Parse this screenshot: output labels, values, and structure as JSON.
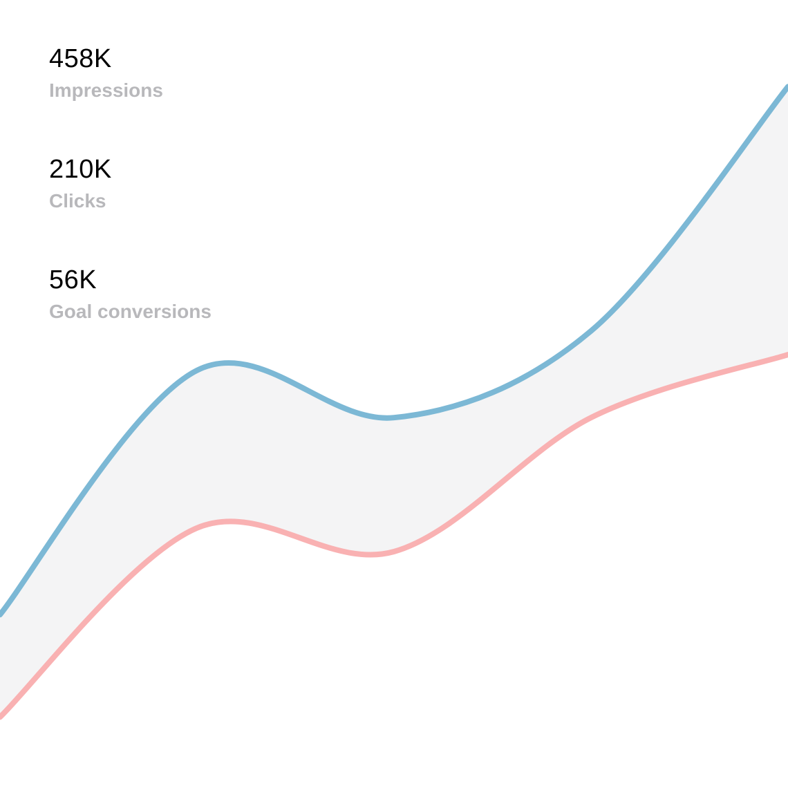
{
  "stats": [
    {
      "value": "458K",
      "label": "Impressions"
    },
    {
      "value": "210K",
      "label": "Clicks"
    },
    {
      "value": "56K",
      "label": "Goal conversions"
    }
  ],
  "colors": {
    "upper_line": "#7cb8d5",
    "lower_line": "#f9b1b2",
    "band_fill": "#f4f4f5",
    "value_text": "#000000",
    "label_text": "#b8b8bb"
  },
  "chart_data": {
    "type": "area",
    "title": "",
    "xlabel": "",
    "ylabel": "",
    "grid": false,
    "x": [
      0,
      1,
      2,
      3,
      4
    ],
    "ylim": [
      0,
      100
    ],
    "series": [
      {
        "values": [
          22,
          53,
          47,
          58,
          89
        ]
      },
      {
        "values": [
          9,
          33,
          30,
          47,
          55
        ]
      }
    ]
  }
}
